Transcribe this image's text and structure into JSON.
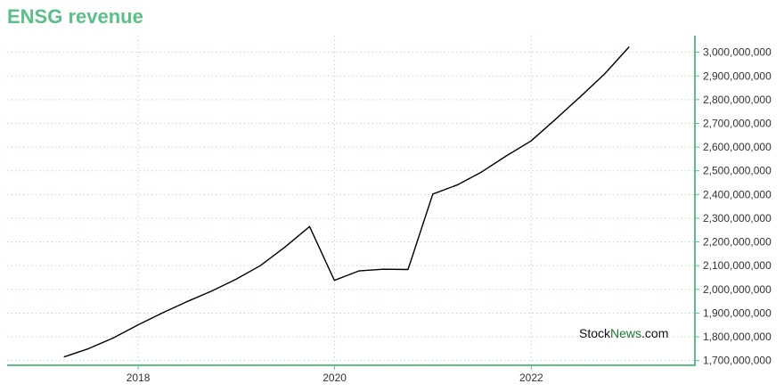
{
  "title": "ENSG revenue",
  "watermark": {
    "part1": "Stock",
    "part2": "News",
    "part3": ".com"
  },
  "colors": {
    "title": "#5ac087",
    "axis": "#5ac087",
    "grid": "#b8dcc8",
    "line": "#000000",
    "plot_bg": "#ffffff",
    "watermark_brand": "#1a7a2c"
  },
  "chart_data": {
    "type": "line",
    "title": "ENSG revenue",
    "xlabel": "",
    "ylabel": "",
    "x_ticks": [
      "2018",
      "2020",
      "2022"
    ],
    "y_ticks": [
      "1,700,000,000",
      "1,800,000,000",
      "1,900,000,000",
      "2,000,000,000",
      "2,100,000,000",
      "2,200,000,000",
      "2,300,000,000",
      "2,400,000,000",
      "2,500,000,000",
      "2,600,000,000",
      "2,700,000,000",
      "2,800,000,000",
      "2,900,000,000",
      "3,000,000,000"
    ],
    "y_axis_position": "right",
    "grid": true,
    "legend": "none",
    "xlim": [
      "2016-09-01",
      "2023-09-01"
    ],
    "ylim": [
      1680000000,
      3070000000
    ],
    "series": [
      {
        "x": [
          "2017-03-31",
          "2017-06-30",
          "2017-09-30",
          "2017-12-31",
          "2018-03-31",
          "2018-06-30",
          "2018-09-30",
          "2018-12-31",
          "2019-03-31",
          "2019-06-30",
          "2019-09-30",
          "2019-12-31",
          "2020-03-31",
          "2020-06-30",
          "2020-09-30",
          "2020-12-31",
          "2021-03-31",
          "2021-06-30",
          "2021-09-30",
          "2021-12-31",
          "2022-03-31",
          "2022-06-30",
          "2022-09-30",
          "2022-12-31"
        ],
        "values": [
          1715000000,
          1750000000,
          1795000000,
          1850000000,
          1900000000,
          1948000000,
          1992000000,
          2043000000,
          2100000000,
          2178000000,
          2265000000,
          2038000000,
          2078000000,
          2085000000,
          2084000000,
          2402000000,
          2440000000,
          2495000000,
          2563000000,
          2626000000,
          2716000000,
          2810000000,
          2908000000,
          3023000000
        ]
      }
    ]
  }
}
